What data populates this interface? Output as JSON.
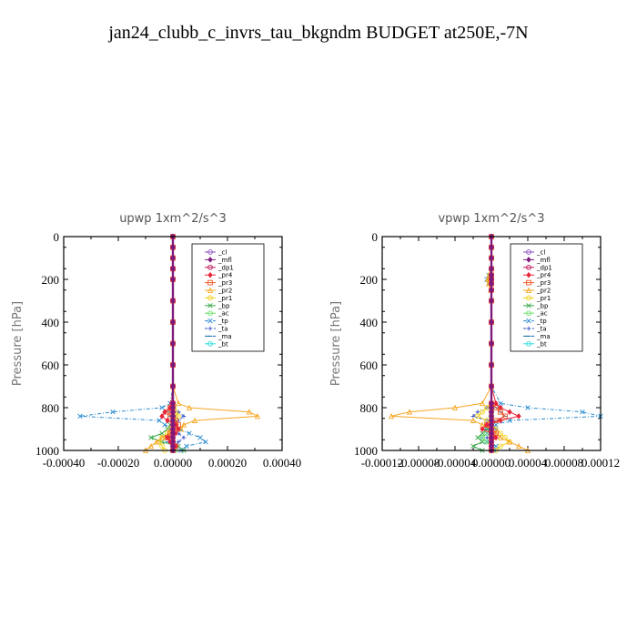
{
  "title": "jan24_clubb_c_invrs_tau_bkgndm  BUDGET at250E,-7N",
  "colors": {
    "_cl": "#8a4fc0",
    "_mfl": "#7b1a7b",
    "_dp1": "#c0155a",
    "_pr4": "#e8263a",
    "_pr3": "#f05a28",
    "_pr2": "#f5a623",
    "_pr1": "#f2d21b",
    "_bp": "#3aa84a",
    "_ac": "#6fe06f",
    "_tp": "#2a8bd0",
    "_ta": "#3a55c8",
    "_ma": "#1a6ab0",
    "_bt": "#33dddd"
  },
  "chart_data": [
    {
      "type": "line",
      "title": "upwp   1xm^2/s^3",
      "xlabel": "",
      "ylabel": "Pressure [hPa]",
      "xlim": [
        -0.0004,
        0.0004
      ],
      "ylim": [
        1000,
        0
      ],
      "xticks": [
        "-0.00040",
        "-0.00020",
        "0.00000",
        "0.00020",
        "0.00040"
      ],
      "xtick_values": [
        -0.0004,
        -0.0002,
        0,
        0.0002,
        0.0004
      ],
      "yticks": [
        "0",
        "200",
        "400",
        "600",
        "800",
        "1000"
      ],
      "ytick_values": [
        0,
        200,
        400,
        600,
        800,
        1000
      ],
      "legend": [
        "_cl",
        "_mfl",
        "_dp1",
        "_pr4",
        "_pr3",
        "_pr2",
        "_pr1",
        "_bp",
        "_ac",
        "_tp",
        "_ta",
        "_ma",
        "_bt"
      ],
      "legend_position": "top-right",
      "levels": [
        0,
        50,
        100,
        150,
        200,
        300,
        400,
        500,
        600,
        700,
        780,
        800,
        820,
        840,
        860,
        880,
        900,
        920,
        940,
        960,
        980,
        1000
      ],
      "series": [
        {
          "name": "_cl",
          "values": [
            0,
            0,
            0,
            0,
            0,
            0,
            0,
            0,
            0,
            0,
            0,
            0,
            0,
            0,
            0,
            0,
            0,
            0,
            0,
            0,
            0,
            0
          ]
        },
        {
          "name": "_mfl",
          "values": [
            0,
            0,
            0,
            0,
            0,
            0,
            0,
            0,
            0,
            0,
            0,
            0,
            0,
            0,
            0,
            0,
            0,
            0,
            0,
            0,
            0,
            0
          ]
        },
        {
          "name": "_dp1",
          "values": [
            0,
            0,
            0,
            0,
            0,
            0,
            0,
            0,
            0,
            0,
            0,
            0,
            0,
            0,
            0,
            0,
            0,
            0,
            0,
            0,
            0,
            0
          ]
        },
        {
          "name": "_pr4",
          "values": [
            0,
            0,
            0,
            0,
            0,
            0,
            0,
            0,
            0,
            0,
            -5e-06,
            -1e-05,
            -3e-05,
            -4e-05,
            -2e-05,
            1e-05,
            2e-05,
            1e-05,
            -2e-05,
            -1e-05,
            1e-05,
            0
          ]
        },
        {
          "name": "_pr3",
          "values": [
            0,
            0,
            0,
            0,
            0,
            0,
            0,
            0,
            0,
            0,
            0,
            -1e-05,
            -2e-05,
            -1e-05,
            1e-05,
            2e-05,
            1e-05,
            -1e-05,
            -2e-05,
            0,
            1e-05,
            0
          ]
        },
        {
          "name": "_pr2",
          "values": [
            0,
            0,
            0,
            0,
            0,
            0,
            0,
            0,
            0,
            0,
            2e-05,
            6e-05,
            0.00028,
            0.00031,
            8e-05,
            4e-05,
            3e-05,
            -1e-05,
            -4e-05,
            -6e-05,
            -8e-05,
            -0.0001
          ]
        },
        {
          "name": "_pr1",
          "values": [
            0,
            0,
            0,
            0,
            0,
            0,
            0,
            0,
            0,
            0,
            0,
            5e-06,
            1e-05,
            2e-05,
            5e-06,
            0,
            -1e-05,
            -2e-05,
            -4e-05,
            -5e-05,
            -4e-05,
            -3e-05
          ]
        },
        {
          "name": "_bp",
          "values": [
            0,
            0,
            0,
            0,
            0,
            0,
            0,
            0,
            0,
            0,
            0,
            0,
            0,
            1e-05,
            0,
            -1e-05,
            -2e-05,
            -4e-05,
            -8e-05,
            -4e-05,
            2e-05,
            4e-05
          ]
        },
        {
          "name": "_ac",
          "values": [
            0,
            0,
            0,
            0,
            0,
            0,
            0,
            0,
            0,
            0,
            0,
            0,
            0,
            0,
            0,
            0,
            0,
            -1e-05,
            -2e-05,
            0,
            1e-05,
            1e-05
          ]
        },
        {
          "name": "_tp",
          "values": [
            0,
            0,
            0,
            0,
            0,
            0,
            0,
            0,
            0,
            0,
            -1e-05,
            -4e-05,
            -0.00022,
            -0.00034,
            -5e-05,
            -3e-05,
            2e-05,
            6e-05,
            0.0001,
            0.00012,
            5e-05,
            3e-05
          ]
        },
        {
          "name": "_ta",
          "values": [
            0,
            0,
            0,
            0,
            0,
            0,
            0,
            0,
            0,
            0,
            0,
            0,
            2e-05,
            4e-05,
            2e-05,
            0,
            -1e-05,
            2e-05,
            4e-05,
            2e-05,
            1e-05,
            0
          ]
        },
        {
          "name": "_ma",
          "values": [
            0,
            0,
            0,
            0,
            0,
            0,
            0,
            0,
            0,
            0,
            0,
            -1e-05,
            -2e-05,
            -1e-05,
            0,
            1e-05,
            1e-05,
            0,
            -1e-05,
            -2e-05,
            0,
            1e-05
          ]
        },
        {
          "name": "_bt",
          "values": [
            0,
            0,
            0,
            0,
            0,
            0,
            0,
            0,
            0,
            0,
            0,
            0,
            0,
            0,
            0,
            0,
            0,
            0,
            0,
            0,
            0,
            0
          ]
        }
      ]
    },
    {
      "type": "line",
      "title": "vpwp   1xm^2/s^3",
      "xlabel": "",
      "ylabel": "Pressure [hPa]",
      "xlim": [
        -0.00012,
        0.00012
      ],
      "ylim": [
        1000,
        0
      ],
      "xticks": [
        "-0.00012",
        "-0.00008",
        "-0.00004",
        "0.00000",
        "0.00004",
        "0.00008",
        "0.00012"
      ],
      "xtick_values": [
        -0.00012,
        -8e-05,
        -4e-05,
        0,
        4e-05,
        8e-05,
        0.00012
      ],
      "yticks": [
        "0",
        "200",
        "400",
        "600",
        "800",
        "1000"
      ],
      "ytick_values": [
        0,
        200,
        400,
        600,
        800,
        1000
      ],
      "legend": [
        "_cl",
        "_mfl",
        "_dp1",
        "_pr4",
        "_pr3",
        "_pr2",
        "_pr1",
        "_bp",
        "_ac",
        "_tp",
        "_ta",
        "_ma",
        "_bt"
      ],
      "legend_position": "top-right",
      "levels": [
        0,
        50,
        100,
        150,
        180,
        200,
        220,
        250,
        300,
        400,
        500,
        600,
        700,
        780,
        800,
        820,
        840,
        860,
        880,
        900,
        920,
        940,
        960,
        980,
        1000
      ],
      "series": [
        {
          "name": "_cl",
          "values": [
            0,
            0,
            0,
            0,
            0,
            0,
            0,
            0,
            0,
            0,
            0,
            0,
            0,
            0,
            0,
            0,
            0,
            0,
            0,
            0,
            0,
            0,
            0,
            0,
            0
          ]
        },
        {
          "name": "_mfl",
          "values": [
            0,
            0,
            0,
            0,
            0,
            0,
            0,
            0,
            0,
            0,
            0,
            0,
            0,
            0,
            0,
            0,
            0,
            0,
            0,
            0,
            0,
            0,
            0,
            0,
            0
          ]
        },
        {
          "name": "_dp1",
          "values": [
            0,
            0,
            0,
            0,
            0,
            0,
            0,
            0,
            0,
            0,
            0,
            0,
            0,
            0,
            0,
            0,
            0,
            0,
            0,
            0,
            0,
            0,
            0,
            0,
            0
          ]
        },
        {
          "name": "_pr4",
          "values": [
            0,
            0,
            0,
            0,
            0,
            0,
            0,
            0,
            0,
            0,
            0,
            0,
            0,
            5e-06,
            1e-05,
            2e-05,
            3e-05,
            1e-05,
            -5e-06,
            -1e-05,
            0,
            5e-06,
            0,
            0,
            0
          ]
        },
        {
          "name": "_pr3",
          "values": [
            0,
            0,
            0,
            0,
            0,
            0,
            0,
            0,
            0,
            0,
            0,
            0,
            0,
            0,
            5e-06,
            1e-05,
            1.5e-05,
            5e-06,
            -5e-06,
            0,
            5e-06,
            0,
            0,
            0,
            0
          ]
        },
        {
          "name": "_pr2",
          "values": [
            0,
            0,
            0,
            0,
            -2e-06,
            -4e-06,
            -3e-06,
            -1e-06,
            0,
            0,
            0,
            0,
            0,
            -1e-05,
            -4e-05,
            -9e-05,
            -0.00011,
            -2e-05,
            -1e-05,
            0,
            5e-06,
            1e-05,
            2e-05,
            3e-05,
            4e-05
          ]
        },
        {
          "name": "_pr1",
          "values": [
            0,
            0,
            0,
            0,
            -2e-06,
            -3e-06,
            -2e-06,
            0,
            0,
            0,
            0,
            0,
            0,
            0,
            -5e-06,
            -1e-05,
            -1.5e-05,
            -5e-06,
            0,
            5e-06,
            1e-05,
            1.5e-05,
            2e-05,
            1e-05,
            5e-06
          ]
        },
        {
          "name": "_bp",
          "values": [
            0,
            0,
            0,
            0,
            0,
            0,
            0,
            0,
            0,
            0,
            0,
            0,
            0,
            0,
            0,
            0,
            0,
            0,
            0,
            -5e-06,
            -1e-05,
            -1.5e-05,
            -1e-05,
            -2e-05,
            -1e-05
          ]
        },
        {
          "name": "_ac",
          "values": [
            0,
            0,
            0,
            0,
            0,
            0,
            0,
            0,
            0,
            0,
            0,
            0,
            0,
            0,
            0,
            0,
            0,
            0,
            0,
            0,
            -5e-06,
            -1e-05,
            -5e-06,
            0,
            0
          ]
        },
        {
          "name": "_tp",
          "values": [
            0,
            0,
            0,
            0,
            -3e-06,
            -5e-06,
            -3e-06,
            0,
            0,
            0,
            0,
            0,
            0,
            1e-05,
            4e-05,
            0.0001,
            0.00012,
            2e-05,
            5e-06,
            0,
            -5e-06,
            -1e-05,
            -5e-06,
            5e-06,
            3e-06
          ]
        },
        {
          "name": "_ta",
          "values": [
            0,
            0,
            0,
            0,
            0,
            0,
            0,
            0,
            0,
            0,
            0,
            0,
            0,
            0,
            -5e-06,
            -1.5e-05,
            -2e-05,
            -5e-06,
            0,
            5e-06,
            0,
            -5e-06,
            0,
            0,
            0
          ]
        },
        {
          "name": "_ma",
          "values": [
            0,
            0,
            0,
            0,
            0,
            0,
            0,
            0,
            0,
            0,
            0,
            0,
            0,
            0,
            5e-06,
            1e-05,
            1.5e-05,
            5e-06,
            0,
            -5e-06,
            0,
            5e-06,
            0,
            0,
            0
          ]
        },
        {
          "name": "_bt",
          "values": [
            0,
            0,
            0,
            0,
            0,
            0,
            0,
            0,
            0,
            0,
            0,
            0,
            0,
            0,
            0,
            0,
            0,
            0,
            0,
            0,
            0,
            0,
            0,
            0,
            0
          ]
        }
      ]
    }
  ]
}
